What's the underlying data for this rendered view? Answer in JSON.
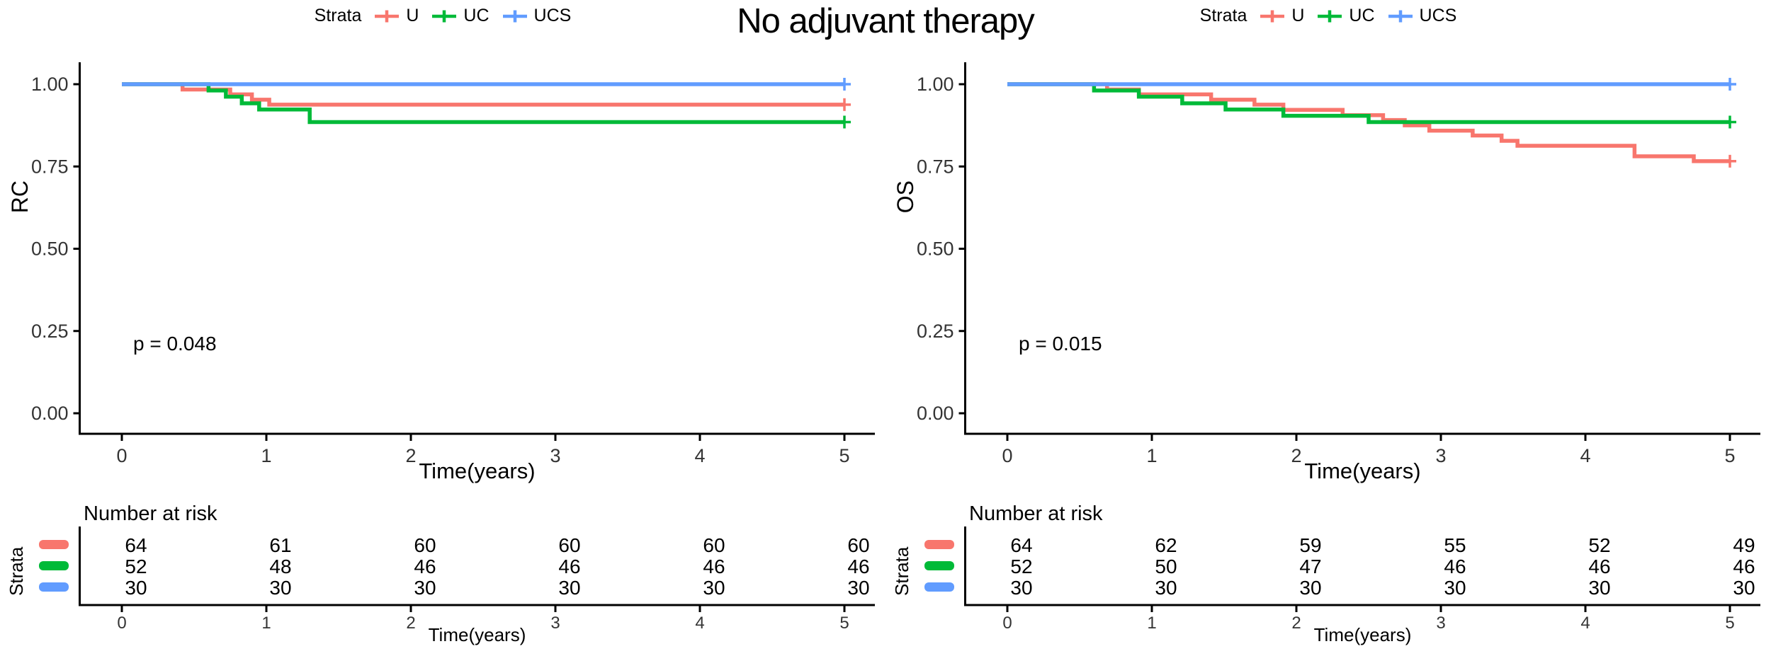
{
  "title": "No adjuvant therapy",
  "chart_data": [
    {
      "type": "line",
      "subtype": "kaplan-meier-step",
      "panel": "RC",
      "legend_title": "Strata",
      "p_value": "p = 0.048",
      "ylabel": "RC",
      "xlabel": "Time(years)",
      "xlim": [
        0,
        5
      ],
      "ylim": [
        0,
        1
      ],
      "grid": false,
      "legend_position": "top",
      "yticks": [
        {
          "v": 0.0,
          "label": "0.00"
        },
        {
          "v": 0.25,
          "label": "0.25"
        },
        {
          "v": 0.5,
          "label": "0.50"
        },
        {
          "v": 0.75,
          "label": "0.75"
        },
        {
          "v": 1.0,
          "label": "1.00"
        }
      ],
      "xticks": [
        {
          "v": 0,
          "label": "0"
        },
        {
          "v": 1,
          "label": "1"
        },
        {
          "v": 2,
          "label": "2"
        },
        {
          "v": 3,
          "label": "3"
        },
        {
          "v": 4,
          "label": "4"
        },
        {
          "v": 5,
          "label": "5"
        }
      ],
      "series": [
        {
          "name": "U",
          "color": "#F8766D",
          "steps": [
            [
              0,
              1.0
            ],
            [
              0.42,
              0.984
            ],
            [
              0.75,
              0.969
            ],
            [
              0.9,
              0.953
            ],
            [
              1.02,
              0.938
            ],
            [
              5,
              0.938
            ]
          ],
          "censor_at_end": true
        },
        {
          "name": "UC",
          "color": "#00BA38",
          "steps": [
            [
              0,
              1.0
            ],
            [
              0.6,
              0.981
            ],
            [
              0.72,
              0.962
            ],
            [
              0.83,
              0.942
            ],
            [
              0.95,
              0.923
            ],
            [
              1.3,
              0.885
            ],
            [
              5,
              0.885
            ]
          ],
          "censor_at_end": true
        },
        {
          "name": "UCS",
          "color": "#619CFF",
          "steps": [
            [
              0,
              1.0
            ],
            [
              5,
              1.0
            ]
          ],
          "censor_at_end": true
        }
      ],
      "risk_table": {
        "header": "Number at risk",
        "strata_label": "Strata",
        "axis_label": "Time(years)",
        "times": [
          0,
          1,
          2,
          3,
          4,
          5
        ],
        "rows": [
          {
            "name": "U",
            "color": "#F8766D",
            "counts": [
              "64",
              "61",
              "60",
              "60",
              "60",
              "60"
            ]
          },
          {
            "name": "UC",
            "color": "#00BA38",
            "counts": [
              "52",
              "48",
              "46",
              "46",
              "46",
              "46"
            ]
          },
          {
            "name": "UCS",
            "color": "#619CFF",
            "counts": [
              "30",
              "30",
              "30",
              "30",
              "30",
              "30"
            ]
          }
        ]
      }
    },
    {
      "type": "line",
      "subtype": "kaplan-meier-step",
      "panel": "OS",
      "legend_title": "Strata",
      "p_value": "p = 0.015",
      "ylabel": "OS",
      "xlabel": "Time(years)",
      "xlim": [
        0,
        5
      ],
      "ylim": [
        0,
        1
      ],
      "grid": false,
      "legend_position": "top",
      "yticks": [
        {
          "v": 0.0,
          "label": "0.00"
        },
        {
          "v": 0.25,
          "label": "0.25"
        },
        {
          "v": 0.5,
          "label": "0.50"
        },
        {
          "v": 0.75,
          "label": "0.75"
        },
        {
          "v": 1.0,
          "label": "1.00"
        }
      ],
      "xticks": [
        {
          "v": 0,
          "label": "0"
        },
        {
          "v": 1,
          "label": "1"
        },
        {
          "v": 2,
          "label": "2"
        },
        {
          "v": 3,
          "label": "3"
        },
        {
          "v": 4,
          "label": "4"
        },
        {
          "v": 5,
          "label": "5"
        }
      ],
      "series": [
        {
          "name": "U",
          "color": "#F8766D",
          "steps": [
            [
              0,
              1.0
            ],
            [
              0.69,
              0.984
            ],
            [
              0.91,
              0.969
            ],
            [
              1.41,
              0.953
            ],
            [
              1.71,
              0.938
            ],
            [
              1.91,
              0.922
            ],
            [
              2.32,
              0.906
            ],
            [
              2.6,
              0.891
            ],
            [
              2.75,
              0.875
            ],
            [
              2.92,
              0.859
            ],
            [
              3.22,
              0.844
            ],
            [
              3.42,
              0.828
            ],
            [
              3.53,
              0.813
            ],
            [
              4.34,
              0.781
            ],
            [
              4.75,
              0.766
            ],
            [
              5,
              0.766
            ]
          ],
          "censor_at_end": true
        },
        {
          "name": "UC",
          "color": "#00BA38",
          "steps": [
            [
              0,
              1.0
            ],
            [
              0.6,
              0.981
            ],
            [
              0.91,
              0.962
            ],
            [
              1.21,
              0.942
            ],
            [
              1.51,
              0.923
            ],
            [
              1.91,
              0.904
            ],
            [
              2.5,
              0.885
            ],
            [
              5,
              0.885
            ]
          ],
          "censor_at_end": true
        },
        {
          "name": "UCS",
          "color": "#619CFF",
          "steps": [
            [
              0,
              1.0
            ],
            [
              5,
              1.0
            ]
          ],
          "censor_at_end": true
        }
      ],
      "risk_table": {
        "header": "Number at risk",
        "strata_label": "Strata",
        "axis_label": "Time(years)",
        "times": [
          0,
          1,
          2,
          3,
          4,
          5
        ],
        "rows": [
          {
            "name": "U",
            "color": "#F8766D",
            "counts": [
              "64",
              "62",
              "59",
              "55",
              "52",
              "49"
            ]
          },
          {
            "name": "UC",
            "color": "#00BA38",
            "counts": [
              "52",
              "50",
              "47",
              "46",
              "46",
              "46"
            ]
          },
          {
            "name": "UCS",
            "color": "#619CFF",
            "counts": [
              "30",
              "30",
              "30",
              "30",
              "30",
              "30"
            ]
          }
        ]
      }
    }
  ]
}
